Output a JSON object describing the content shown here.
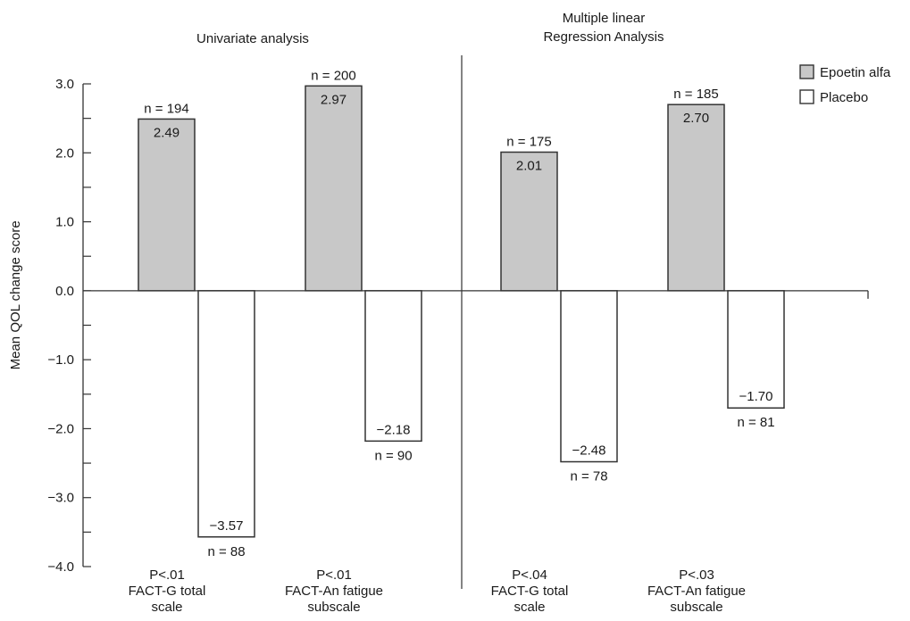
{
  "chart_data": {
    "type": "bar",
    "ylabel": "Mean QOL change score",
    "ylim": [
      -4.0,
      3.0
    ],
    "y_ticks": [
      "3.0",
      "2.0",
      "1.0",
      "0.0",
      "−1.0",
      "−2.0",
      "−3.0",
      "−4.0"
    ],
    "groups": [
      {
        "title_lines": [
          "Univariate analysis"
        ]
      },
      {
        "title_lines": [
          "Multiple linear",
          "Regression Analysis"
        ]
      }
    ],
    "categories": [
      {
        "label_lines": [
          "P<.01",
          "FACT-G total",
          "scale"
        ]
      },
      {
        "label_lines": [
          "P<.01",
          "FACT-An fatigue",
          "subscale"
        ]
      },
      {
        "label_lines": [
          "P<.04",
          "FACT-G total",
          "scale"
        ]
      },
      {
        "label_lines": [
          "P<.03",
          "FACT-An fatigue",
          "subscale"
        ]
      }
    ],
    "series": [
      {
        "name": "Epoetin alfa",
        "color": "#c8c8c8",
        "values": [
          2.49,
          2.97,
          2.01,
          2.7
        ],
        "value_labels": [
          "2.49",
          "2.97",
          "2.01",
          "2.70"
        ],
        "n_labels": [
          "n = 194",
          "n = 200",
          "n = 175",
          "n = 185"
        ]
      },
      {
        "name": "Placebo",
        "color": "#ffffff",
        "values": [
          -3.57,
          -2.18,
          -2.48,
          -1.7
        ],
        "value_labels": [
          "−3.57",
          "−2.18",
          "−2.48",
          "−1.70"
        ],
        "n_labels": [
          "n = 88",
          "n = 90",
          "n = 78",
          "n = 81"
        ]
      }
    ],
    "legend_position": "top-right",
    "grid": false
  }
}
